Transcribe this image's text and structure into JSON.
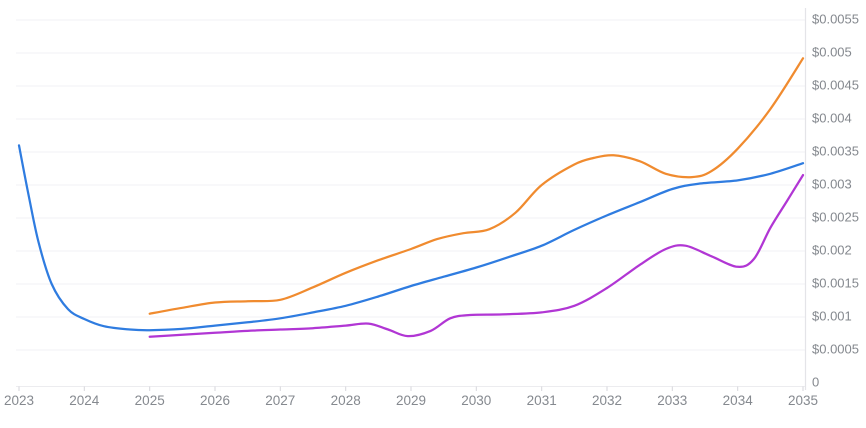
{
  "chart_data": {
    "type": "line",
    "legend": "none",
    "grid": "horizontal",
    "x_axis": {
      "min": 2023,
      "max": 2035,
      "ticks": [
        "2023",
        "2024",
        "2025",
        "2026",
        "2027",
        "2028",
        "2029",
        "2030",
        "2031",
        "2032",
        "2033",
        "2034",
        "2035"
      ]
    },
    "y_axis": {
      "side": "right",
      "min": 0,
      "max": 0.0055,
      "ticks": [
        {
          "label": "$0.0055",
          "value": 0.0055
        },
        {
          "label": "$0.005",
          "value": 0.005
        },
        {
          "label": "$0.0045",
          "value": 0.0045
        },
        {
          "label": "$0.004",
          "value": 0.004
        },
        {
          "label": "$0.0035",
          "value": 0.0035
        },
        {
          "label": "$0.003",
          "value": 0.003
        },
        {
          "label": "$0.0025",
          "value": 0.0025
        },
        {
          "label": "$0.002",
          "value": 0.002
        },
        {
          "label": "$0.0015",
          "value": 0.0015
        },
        {
          "label": "$0.001",
          "value": 0.001
        },
        {
          "label": "$0.0005",
          "value": 0.0005
        },
        {
          "label": "0",
          "value": 0
        }
      ]
    },
    "series": [
      {
        "name": "blue-line",
        "color": "#2F7CE0",
        "points": [
          [
            2023.0,
            0.0036
          ],
          [
            2023.15,
            0.00283
          ],
          [
            2023.3,
            0.00213
          ],
          [
            2023.5,
            0.0015
          ],
          [
            2023.75,
            0.00112
          ],
          [
            2024.0,
            0.00097
          ],
          [
            2024.3,
            0.00086
          ],
          [
            2024.7,
            0.00081
          ],
          [
            2025.0,
            0.0008
          ],
          [
            2025.5,
            0.00082
          ],
          [
            2026.0,
            0.00087
          ],
          [
            2026.5,
            0.00092
          ],
          [
            2027.0,
            0.00098
          ],
          [
            2027.5,
            0.00107
          ],
          [
            2028.0,
            0.00117
          ],
          [
            2028.5,
            0.00131
          ],
          [
            2029.0,
            0.00147
          ],
          [
            2029.5,
            0.00161
          ],
          [
            2030.0,
            0.00175
          ],
          [
            2030.5,
            0.00191
          ],
          [
            2031.0,
            0.00208
          ],
          [
            2031.5,
            0.00232
          ],
          [
            2032.0,
            0.00254
          ],
          [
            2032.5,
            0.00274
          ],
          [
            2033.0,
            0.00294
          ],
          [
            2033.4,
            0.00302
          ],
          [
            2034.0,
            0.00307
          ],
          [
            2034.5,
            0.00317
          ],
          [
            2035.0,
            0.00333
          ]
        ]
      },
      {
        "name": "orange-line",
        "color": "#F08B2F",
        "points": [
          [
            2025.0,
            0.00105
          ],
          [
            2025.5,
            0.00114
          ],
          [
            2026.0,
            0.00122
          ],
          [
            2026.5,
            0.00124
          ],
          [
            2027.0,
            0.00126
          ],
          [
            2027.5,
            0.00145
          ],
          [
            2028.0,
            0.00167
          ],
          [
            2028.5,
            0.00186
          ],
          [
            2029.0,
            0.00203
          ],
          [
            2029.4,
            0.00218
          ],
          [
            2029.8,
            0.00227
          ],
          [
            2030.2,
            0.00233
          ],
          [
            2030.6,
            0.00258
          ],
          [
            2031.0,
            0.003
          ],
          [
            2031.5,
            0.00331
          ],
          [
            2031.8,
            0.00341
          ],
          [
            2032.1,
            0.00345
          ],
          [
            2032.5,
            0.00336
          ],
          [
            2032.9,
            0.00317
          ],
          [
            2033.3,
            0.00312
          ],
          [
            2033.6,
            0.00321
          ],
          [
            2034.0,
            0.00355
          ],
          [
            2034.5,
            0.00415
          ],
          [
            2035.0,
            0.00492
          ]
        ]
      },
      {
        "name": "purple-line",
        "color": "#B136D4",
        "points": [
          [
            2025.0,
            0.0007
          ],
          [
            2025.5,
            0.00073
          ],
          [
            2026.0,
            0.00076
          ],
          [
            2026.5,
            0.00079
          ],
          [
            2027.0,
            0.00081
          ],
          [
            2027.5,
            0.00083
          ],
          [
            2028.0,
            0.00087
          ],
          [
            2028.35,
            0.0009
          ],
          [
            2028.65,
            0.00081
          ],
          [
            2028.95,
            0.00071
          ],
          [
            2029.3,
            0.00079
          ],
          [
            2029.6,
            0.00098
          ],
          [
            2029.9,
            0.00103
          ],
          [
            2030.4,
            0.00104
          ],
          [
            2031.0,
            0.00107
          ],
          [
            2031.5,
            0.00117
          ],
          [
            2032.0,
            0.00144
          ],
          [
            2032.5,
            0.00179
          ],
          [
            2032.9,
            0.00203
          ],
          [
            2033.2,
            0.00208
          ],
          [
            2033.6,
            0.00192
          ],
          [
            2034.0,
            0.00176
          ],
          [
            2034.25,
            0.00188
          ],
          [
            2034.5,
            0.00235
          ],
          [
            2034.75,
            0.00275
          ],
          [
            2035.0,
            0.00315
          ]
        ]
      }
    ]
  },
  "colors": {
    "background": "#FFFFFF",
    "gridline": "#F1F1F4",
    "axis_line": "#E4E4E8",
    "bottom_line": "#ECECEF",
    "tick": "#D6D6DB",
    "y_label": "#84888E",
    "x_label": "#85898F"
  }
}
